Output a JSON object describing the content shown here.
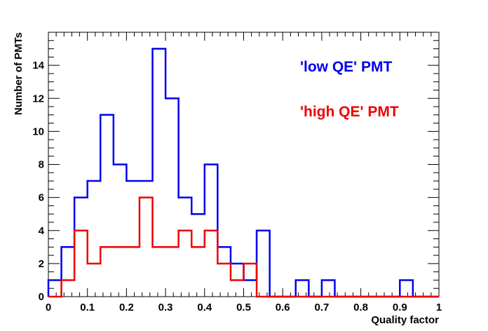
{
  "chart_data": {
    "type": "histogram",
    "xlabel": "Quality factor",
    "ylabel": "Number of PMTs",
    "xlim": [
      0,
      1
    ],
    "ylim": [
      0,
      16
    ],
    "bin_width": 0.0333,
    "x_ticks": [
      "0",
      "0.1",
      "0.2",
      "0.3",
      "0.4",
      "0.5",
      "0.6",
      "0.7",
      "0.8",
      "0.9",
      "1"
    ],
    "y_ticks": [
      "0",
      "2",
      "4",
      "6",
      "8",
      "10",
      "12",
      "14"
    ],
    "bin_edges": [
      0,
      0.0333,
      0.0667,
      0.1,
      0.1333,
      0.1667,
      0.2,
      0.2333,
      0.2667,
      0.3,
      0.3333,
      0.3667,
      0.4,
      0.4333,
      0.4667,
      0.5,
      0.5333,
      0.5667,
      0.6,
      0.6333,
      0.6667,
      0.7,
      0.7333,
      0.7667,
      0.8,
      0.8333,
      0.8667,
      0.9,
      0.9333,
      0.9667,
      1.0
    ],
    "series": [
      {
        "name": "'low QE' PMT",
        "color": "#0000ee",
        "values": [
          1,
          3,
          6,
          7,
          11,
          8,
          7,
          7,
          15,
          12,
          6,
          5,
          8,
          3,
          2,
          1,
          4,
          0,
          0,
          1,
          0,
          1,
          0,
          0,
          0,
          0,
          0,
          1,
          0,
          0
        ]
      },
      {
        "name": "'high QE' PMT",
        "color": "#ee0000",
        "values": [
          0,
          1,
          4,
          2,
          3,
          3,
          3,
          6,
          3,
          3,
          4,
          3,
          4,
          2,
          1,
          2,
          0,
          0,
          0,
          0,
          0,
          0,
          0,
          0,
          0,
          0,
          0,
          0,
          0,
          0
        ]
      }
    ],
    "legend_placement": "top-right",
    "grid": false
  }
}
